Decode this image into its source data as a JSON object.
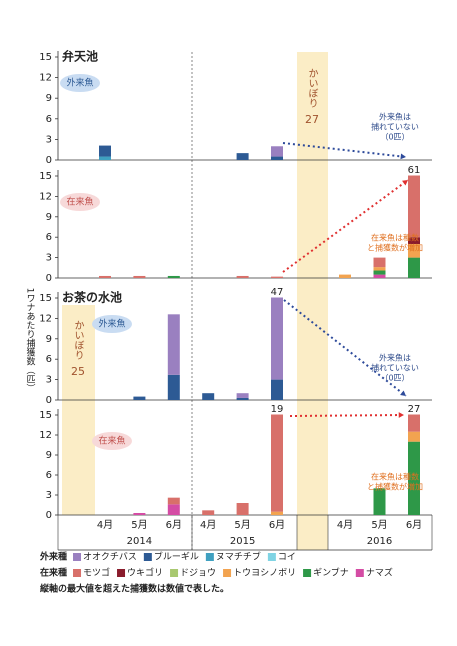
{
  "chart_data": {
    "type": "bar",
    "stacked": true,
    "ylabel": "1ワナあたり捕獲数（匹）",
    "ylim": [
      0,
      15
    ],
    "yticks": [
      0,
      3,
      6,
      9,
      12,
      15
    ],
    "categories": [
      "4月",
      "5月",
      "6月",
      "4月",
      "5月",
      "6月",
      "4月",
      "5月",
      "6月"
    ],
    "years": [
      "2014",
      "2015",
      "2016"
    ],
    "groups": [
      {
        "label": "外来種",
        "series": [
          {
            "name": "オオクチバス",
            "color": "#9a80c0"
          },
          {
            "name": "ブルーギル",
            "color": "#2d5a94"
          },
          {
            "name": "ヌマチチブ",
            "color": "#3fa0c0"
          },
          {
            "name": "コイ",
            "color": "#80d4e4"
          }
        ]
      },
      {
        "label": "在来種",
        "series": [
          {
            "name": "モツゴ",
            "color": "#d8706a"
          },
          {
            "name": "ウキゴリ",
            "color": "#8a1c2c"
          },
          {
            "name": "ドジョウ",
            "color": "#a8c870"
          },
          {
            "name": "トウヨシノボリ",
            "color": "#f2a350"
          },
          {
            "name": "ギンブナ",
            "color": "#2e9848"
          },
          {
            "name": "ナマズ",
            "color": "#d44ca4"
          }
        ]
      }
    ],
    "ponds": [
      {
        "title": "弁天池",
        "kaibori": [
          "かいぼり",
          "27"
        ],
        "alien": {
          "tag": "外来魚",
          "values": [
            [
              0,
              0,
              0,
              0,
              0,
              1.5,
              0,
              0,
              0
            ],
            [
              1.6,
              0,
              0,
              0,
              1.0,
              0.5,
              0,
              0,
              0
            ],
            [
              0.5,
              0,
              0,
              0,
              0,
              0,
              0,
              0,
              0
            ],
            [
              0,
              0,
              0,
              0,
              0,
              0,
              0,
              0,
              0
            ]
          ],
          "overflow_totals": [
            null,
            null,
            null,
            null,
            null,
            null,
            null,
            null,
            null
          ],
          "note": [
            "外来魚は",
            "捕れていない",
            "（0匹）"
          ]
        },
        "native": {
          "tag": "在来魚",
          "values": [
            [
              0.3,
              0.3,
              0,
              0,
              0.3,
              0.2,
              0,
              1.4,
              55
            ],
            [
              0,
              0,
              0,
              0,
              0,
              0,
              0,
              0,
              1
            ],
            [
              0,
              0,
              0,
              0,
              0,
              0,
              0,
              0,
              0
            ],
            [
              0,
              0,
              0,
              0,
              0,
              0,
              0.5,
              0.5,
              2
            ],
            [
              0,
              0,
              0.3,
              0,
              0,
              0,
              0,
              0.6,
              3
            ],
            [
              0,
              0,
              0,
              0,
              0,
              0,
              0,
              0.5,
              0
            ]
          ],
          "overflow_totals": [
            null,
            null,
            null,
            null,
            null,
            null,
            null,
            null,
            61
          ],
          "note": [
            "在来魚は種数",
            "と捕獲数が増加"
          ]
        }
      },
      {
        "title": "お茶の水池",
        "kaibori": [
          "かいぼり",
          "25"
        ],
        "alien": {
          "tag": "外来魚",
          "values": [
            [
              0,
              0,
              8.9,
              0,
              0.7,
              44,
              0,
              0,
              0
            ],
            [
              0,
              0.5,
              3.7,
              1.0,
              0.3,
              3,
              0,
              0,
              0
            ],
            [
              0,
              0,
              0,
              0,
              0,
              0,
              0,
              0,
              0
            ],
            [
              0,
              0,
              0,
              0,
              0,
              0,
              0,
              0,
              0
            ]
          ],
          "overflow_totals": [
            null,
            null,
            null,
            null,
            null,
            47,
            null,
            null,
            null
          ],
          "note": [
            "外来魚は",
            "捕れていない",
            "（0匹）"
          ]
        },
        "native": {
          "tag": "在来魚",
          "values": [
            [
              0,
              0,
              1.0,
              0.7,
              1.8,
              18.5,
              0,
              0,
              14.5
            ],
            [
              0,
              0,
              0,
              0,
              0,
              0,
              0,
              0,
              0
            ],
            [
              0,
              0,
              0,
              0,
              0,
              0,
              0,
              0,
              0
            ],
            [
              0,
              0,
              0,
              0,
              0,
              0.5,
              0,
              0,
              1.5
            ],
            [
              0,
              0,
              0,
              0,
              0,
              0,
              0,
              4.0,
              11
            ],
            [
              0,
              0.3,
              1.6,
              0,
              0,
              0,
              0,
              0,
              0
            ]
          ],
          "overflow_totals": [
            null,
            null,
            null,
            null,
            null,
            19,
            null,
            null,
            27
          ],
          "note": [
            "在来魚は種数",
            "と捕獲数が増加"
          ]
        }
      }
    ],
    "footnote": "縦軸の最大値を超えた捕獲数は数値で表した。"
  }
}
